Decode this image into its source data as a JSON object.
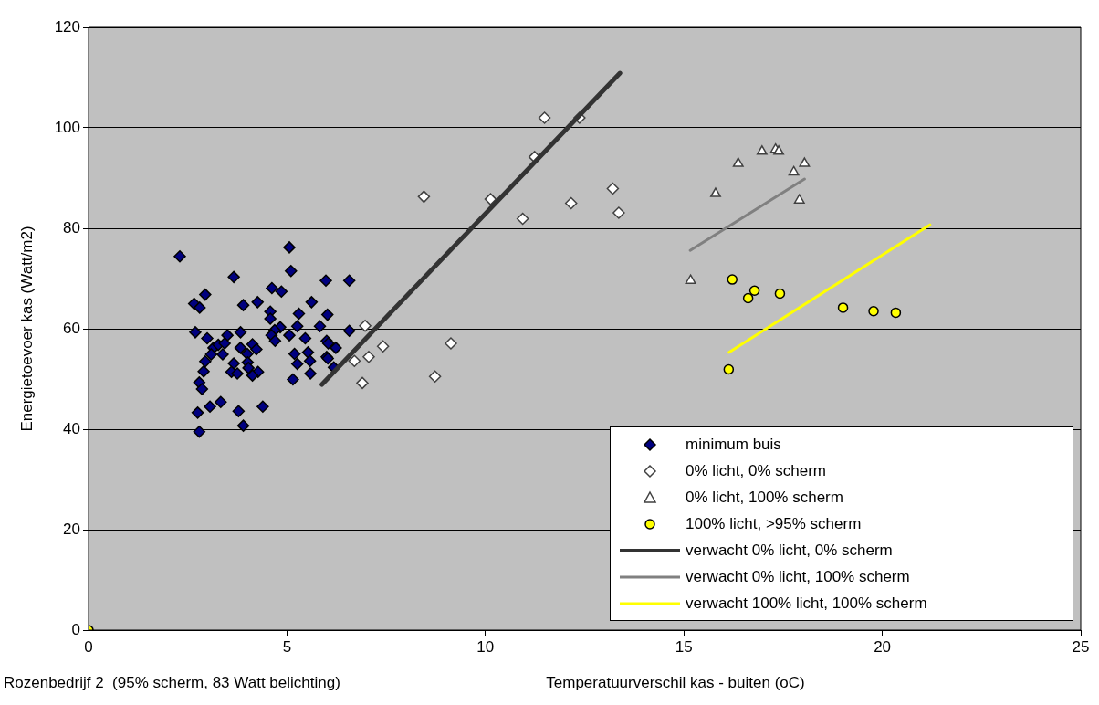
{
  "chart_data": {
    "type": "scatter",
    "xlabel": "Temperatuurverschil kas - buiten (oC)",
    "ylabel": "Energietoevoer kas (Watt/m2)",
    "annotations": [
      "Rozenbedrijf 2  (95% scherm, 83 Watt belichting)"
    ],
    "xlim": [
      0,
      25
    ],
    "xticks": [
      0,
      5,
      10,
      15,
      20,
      25
    ],
    "ylim": [
      0,
      120
    ],
    "yticks": [
      0,
      20,
      40,
      60,
      80,
      100,
      120
    ],
    "grid": "y",
    "legend": "bottom right",
    "series": [
      {
        "name": "minimum buis",
        "type": "scatter",
        "marker": "diamond",
        "color": "#000080",
        "x": [
          2.3,
          5.06,
          5.1,
          3.66,
          5.98,
          6.57,
          2.94,
          4.62,
          4.86,
          2.66,
          2.8,
          3.9,
          4.26,
          5.62,
          4.58,
          4.58,
          5.3,
          6.02,
          2.69,
          2.99,
          3.5,
          3.83,
          4.83,
          4.69,
          5.26,
          5.83,
          6.57,
          5.06,
          4.61,
          5.46,
          4.7,
          3.15,
          3.27,
          3.43,
          3.09,
          3.38,
          3.83,
          4.13,
          4.23,
          4.0,
          6.0,
          6.04,
          6.23,
          2.94,
          3.66,
          4.01,
          5.19,
          5.53,
          5.58,
          6.0,
          6.03,
          2.9,
          3.6,
          3.75,
          4.03,
          4.27,
          4.13,
          5.26,
          5.59,
          6.18,
          2.79,
          2.86,
          5.15,
          2.75,
          3.06,
          3.33,
          3.78,
          4.39,
          3.9,
          2.79
        ],
        "values": [
          74.4,
          76.2,
          71.5,
          70.3,
          69.6,
          69.6,
          66.8,
          68.1,
          67.4,
          65.0,
          64.2,
          64.7,
          65.3,
          65.3,
          63.4,
          62.0,
          63.0,
          62.8,
          59.3,
          58.1,
          58.7,
          59.3,
          60.3,
          59.7,
          60.5,
          60.5,
          59.6,
          58.7,
          58.7,
          58.1,
          57.6,
          56.2,
          56.8,
          57.1,
          54.9,
          54.9,
          56.2,
          56.9,
          55.9,
          55.0,
          57.6,
          57.1,
          56.2,
          53.5,
          53.1,
          53.3,
          55.0,
          55.3,
          53.6,
          54.4,
          54.1,
          51.5,
          51.4,
          51.1,
          52.2,
          51.4,
          50.7,
          53.0,
          51.1,
          52.3,
          49.3,
          48.0,
          49.9,
          43.3,
          44.5,
          45.4,
          43.6,
          44.5,
          40.7,
          39.5
        ]
      },
      {
        "name": "0% licht, 0% scherm",
        "type": "scatter",
        "marker": "diamond",
        "color": "#ffffff",
        "x": [
          11.49,
          12.37,
          11.24,
          8.45,
          10.13,
          13.21,
          12.16,
          10.94,
          13.36,
          6.97,
          7.42,
          9.13,
          7.06,
          6.7,
          6.9,
          8.73
        ],
        "values": [
          102.0,
          102.0,
          94.2,
          86.3,
          85.8,
          87.9,
          85.0,
          81.9,
          83.1,
          60.6,
          56.5,
          57.1,
          54.4,
          53.6,
          49.2,
          50.5
        ]
      },
      {
        "name": "0% licht, 100% scherm",
        "type": "scatter",
        "marker": "triangle",
        "color": "#ffffff",
        "x": [
          16.97,
          17.31,
          17.39,
          16.37,
          18.04,
          17.77,
          15.8,
          17.91,
          15.17
        ],
        "values": [
          95.3,
          95.7,
          95.3,
          92.9,
          92.9,
          91.2,
          86.9,
          85.6,
          69.6
        ]
      },
      {
        "name": "100% licht, >95% scherm",
        "type": "scatter",
        "marker": "circle",
        "color": "#ffff00",
        "x": [
          16.22,
          16.78,
          16.62,
          17.42,
          19.01,
          19.78,
          20.34,
          16.13,
          0
        ],
        "values": [
          69.8,
          67.6,
          66.1,
          67.0,
          64.2,
          63.5,
          63.2,
          51.9,
          0
        ]
      },
      {
        "name": "verwacht 0% licht, 0% scherm",
        "type": "line",
        "marker": "none",
        "color": "#333333",
        "x": [
          5.88,
          13.39
        ],
        "values": [
          48.9,
          110.9
        ]
      },
      {
        "name": "verwacht 0% licht, 100% scherm",
        "type": "line",
        "marker": "none",
        "color": "#808080",
        "x": [
          15.16,
          18.04
        ],
        "values": [
          75.6,
          89.8
        ]
      },
      {
        "name": "verwacht 100% licht, 100% scherm",
        "type": "line",
        "marker": "none",
        "color": "#ffff00",
        "x": [
          16.14,
          21.2
        ],
        "values": [
          55.3,
          80.7
        ]
      }
    ]
  }
}
